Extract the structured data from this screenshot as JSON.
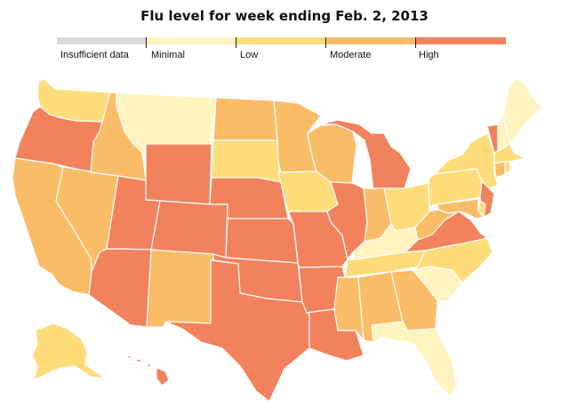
{
  "title": "Flu level for week ending Feb. 2, 2013",
  "legend": [
    {
      "label": "Insufficient data",
      "color": "#d9d9d9"
    },
    {
      "label": "Minimal",
      "color": "#fff3c0"
    },
    {
      "label": "Low",
      "color": "#fedc7a"
    },
    {
      "label": "Moderate",
      "color": "#fbbc68"
    },
    {
      "label": "High",
      "color": "#f2825c"
    }
  ],
  "states": {
    "WA": "Low",
    "OR": "High",
    "CA": "Moderate",
    "NV": "Moderate",
    "ID": "Moderate",
    "MT": "Minimal",
    "WY": "High",
    "UT": "High",
    "AZ": "High",
    "CO": "High",
    "NM": "Moderate",
    "ND": "Moderate",
    "SD": "Low",
    "NE": "High",
    "KS": "High",
    "OK": "High",
    "TX": "High",
    "MN": "Moderate",
    "IA": "Low",
    "MO": "High",
    "AR": "High",
    "LA": "High",
    "WI": "Moderate",
    "IL": "High",
    "MI": "High",
    "IN": "Moderate",
    "OH": "Low",
    "KY": "Minimal",
    "TN": "Low",
    "MS": "Moderate",
    "AL": "Moderate",
    "GA": "Moderate",
    "FL": "Minimal",
    "SC": "Minimal",
    "NC": "Low",
    "VA": "High",
    "WV": "Moderate",
    "PA": "Low",
    "NY": "Low",
    "VT": "High",
    "NH": "Minimal",
    "ME": "Minimal",
    "MA": "Low",
    "CT": "Moderate",
    "RI": "Low",
    "NJ": "High",
    "DE": "Low",
    "MD": "Moderate",
    "AK": "Low",
    "HI": "High"
  }
}
